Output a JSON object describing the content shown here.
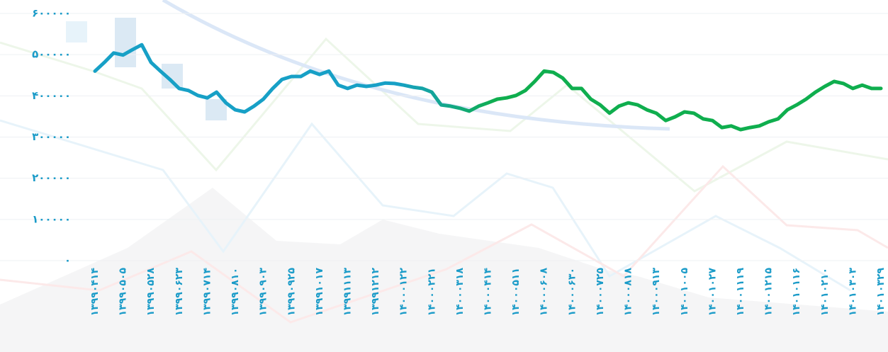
{
  "chart_data": {
    "type": "line",
    "categories": [
      "۱۳۹۹۰۴۱۴",
      null,
      null,
      "۱۳۹۹۰۵۰۵",
      null,
      null,
      "۱۳۹۹۰۵۲۸",
      null,
      null,
      "۱۳۹۹۰۶۲۳",
      null,
      null,
      "۱۳۹۹۰۷۱۴",
      null,
      null,
      "۱۳۹۹۰۸۱۰",
      null,
      null,
      "۱۳۹۹۰۹۰۳",
      null,
      null,
      "۱۳۹۹۰۹۲۵",
      null,
      null,
      "۱۳۹۹۱۰۱۷",
      null,
      null,
      "۱۳۹۹۱۱۱۳",
      null,
      null,
      "۱۳۹۹۱۲۱۲",
      null,
      null,
      "۱۴۰۰۰۱۲۲",
      null,
      null,
      "۱۴۰۰۰۲۲۱",
      null,
      null,
      "۱۴۰۰۰۳۱۸",
      null,
      null,
      "۱۴۰۰۰۴۱۴",
      null,
      null,
      "۱۴۰۰۰۵۱۱",
      null,
      null,
      "۱۴۰۰۰۶۰۸",
      null,
      null,
      "۱۴۰۰۰۶۳۰",
      null,
      null,
      "۱۴۰۰۰۷۲۵",
      null,
      null,
      "۱۴۰۰۰۸۱۸",
      null,
      null,
      "۱۴۰۰۰۹۱۳",
      null,
      null,
      "۱۴۰۰۱۰۰۵",
      null,
      null,
      "۱۴۰۰۱۰۲۷",
      null,
      null,
      "۱۴۰۰۱۱۱۹",
      null,
      null,
      "۱۴۰۰۱۲۱۵",
      null,
      null,
      "۱۴۰۱۰۱۱۶",
      null,
      null,
      "۱۴۰۱۰۲۱۰",
      null,
      null,
      "۱۴۰۱۰۳۰۳",
      null,
      null,
      "۱۴۰۱۰۳۲۹"
    ],
    "values": [
      460000,
      481000,
      504000,
      499000,
      512000,
      524000,
      481000,
      460000,
      440000,
      418000,
      413000,
      401000,
      395000,
      409000,
      383000,
      366000,
      361000,
      375000,
      392000,
      418000,
      440000,
      447000,
      447000,
      460000,
      452000,
      460000,
      426000,
      418000,
      426000,
      423000,
      426000,
      431000,
      430000,
      426000,
      421000,
      418000,
      409000,
      378000,
      375000,
      370000,
      363000,
      375000,
      383000,
      392000,
      395000,
      401000,
      413000,
      435000,
      460000,
      457000,
      443000,
      418000,
      418000,
      392000,
      378000,
      358000,
      375000,
      383000,
      378000,
      366000,
      358000,
      340000,
      349000,
      361000,
      358000,
      344000,
      340000,
      323000,
      327000,
      318000,
      323000,
      327000,
      337000,
      344000,
      366000,
      378000,
      392000,
      409000,
      423000,
      435000,
      430000,
      418000,
      426000,
      418000,
      418000
    ],
    "gradient": [
      "#17a0c6",
      "#0fae4e"
    ],
    "ylim": [
      0,
      600000
    ],
    "yticks": [
      {
        "value": 0,
        "label": "۰"
      },
      {
        "value": 100000,
        "label": "۱۰۰۰۰۰"
      },
      {
        "value": 200000,
        "label": "۲۰۰۰۰۰"
      },
      {
        "value": 300000,
        "label": "۳۰۰۰۰۰"
      },
      {
        "value": 400000,
        "label": "۴۰۰۰۰۰"
      },
      {
        "value": 500000,
        "label": "۵۰۰۰۰۰"
      },
      {
        "value": 600000,
        "label": "۶۰۰۰۰۰"
      }
    ],
    "grid": true
  }
}
